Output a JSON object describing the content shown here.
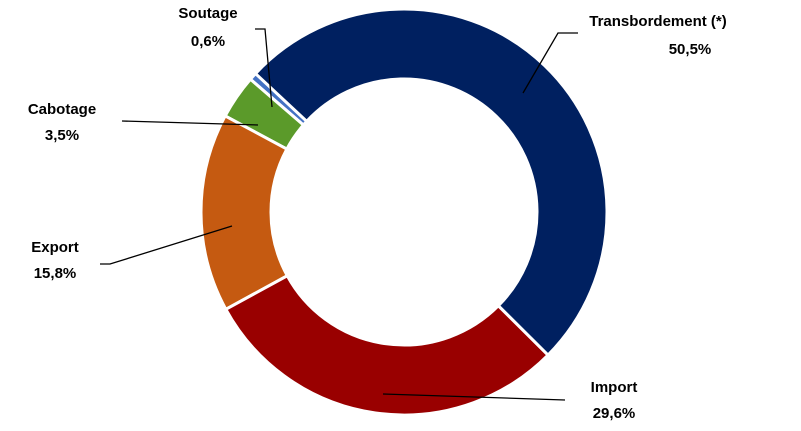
{
  "chart_data": {
    "type": "donut",
    "categories": [
      "Transbordement (*)",
      "Import",
      "Export",
      "Cabotage",
      "Soutage"
    ],
    "values": [
      50.5,
      29.6,
      15.8,
      3.5,
      0.6
    ],
    "value_labels": [
      "50,5%",
      "29,6%",
      "15,8%",
      "3,5%",
      "0,6%"
    ],
    "colors": [
      "#002060",
      "#990000",
      "#c55a11",
      "#5b9a2a",
      "#4472c4"
    ]
  }
}
